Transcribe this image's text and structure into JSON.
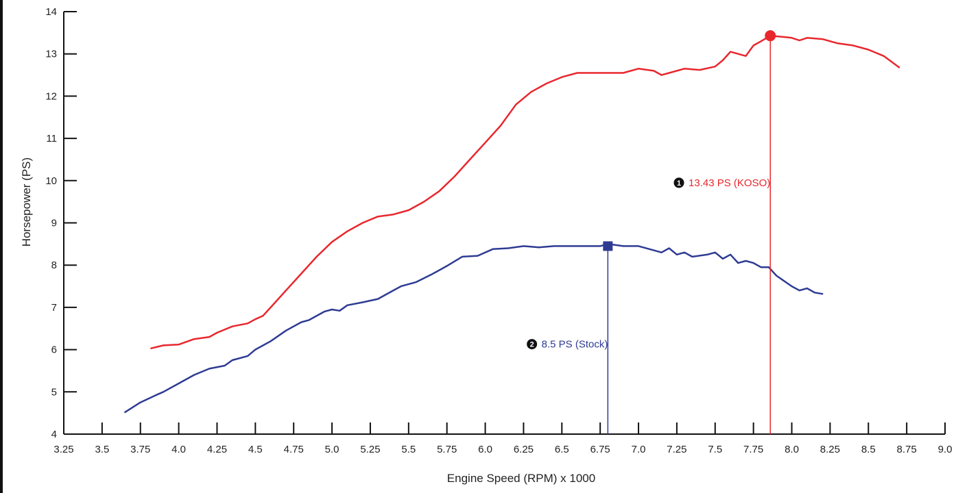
{
  "chart_data": {
    "type": "line",
    "title": "",
    "xlabel": "Engine Speed (RPM) x 1000",
    "ylabel": "Horsepower (PS)",
    "xlim": [
      3.25,
      9.0
    ],
    "ylim": [
      4,
      14
    ],
    "grid": false,
    "x_ticks": [
      3.25,
      3.5,
      3.75,
      4.0,
      4.25,
      4.5,
      4.75,
      5.0,
      5.25,
      5.5,
      5.75,
      6.0,
      6.25,
      6.5,
      6.75,
      7.0,
      7.25,
      7.5,
      7.75,
      8.0,
      8.25,
      8.5,
      8.75,
      9.0
    ],
    "x_tick_labels": [
      "3.25",
      "3.5",
      "3.75",
      "4.0",
      "4.25",
      "4.5",
      "4.75",
      "5.0",
      "5.25",
      "5.5",
      "5.75",
      "6.0",
      "6.25",
      "6.5",
      "6.75",
      "7.0",
      "7.25",
      "7.5",
      "7.75",
      "8.0",
      "8.25",
      "8.5",
      "8.75",
      "9.0"
    ],
    "y_ticks": [
      4,
      5,
      6,
      7,
      8,
      9,
      10,
      11,
      12,
      13,
      14
    ],
    "y_tick_labels": [
      "4",
      "5",
      "6",
      "7",
      "8",
      "9",
      "10",
      "11",
      "12",
      "13",
      "14"
    ],
    "series": [
      {
        "color": "#e8272d",
        "x": [
          3.82,
          3.9,
          4.0,
          4.1,
          4.2,
          4.25,
          4.35,
          4.45,
          4.5,
          4.55,
          4.6,
          4.7,
          4.8,
          4.9,
          5.0,
          5.1,
          5.2,
          5.3,
          5.4,
          5.5,
          5.6,
          5.7,
          5.8,
          5.9,
          6.0,
          6.1,
          6.2,
          6.3,
          6.4,
          6.5,
          6.6,
          6.7,
          6.8,
          6.9,
          7.0,
          7.1,
          7.15,
          7.2,
          7.3,
          7.4,
          7.5,
          7.55,
          7.6,
          7.7,
          7.75,
          7.8,
          7.86,
          7.95,
          8.0,
          8.05,
          8.1,
          8.2,
          8.3,
          8.4,
          8.5,
          8.6,
          8.7
        ],
        "y": [
          6.03,
          6.1,
          6.12,
          6.25,
          6.3,
          6.4,
          6.55,
          6.62,
          6.72,
          6.8,
          7.0,
          7.4,
          7.8,
          8.2,
          8.55,
          8.8,
          9.0,
          9.15,
          9.2,
          9.3,
          9.5,
          9.75,
          10.1,
          10.5,
          10.9,
          11.3,
          11.8,
          12.1,
          12.3,
          12.45,
          12.55,
          12.55,
          12.55,
          12.55,
          12.65,
          12.6,
          12.5,
          12.55,
          12.65,
          12.62,
          12.7,
          12.85,
          13.05,
          12.95,
          13.2,
          13.3,
          13.43,
          13.4,
          13.38,
          13.32,
          13.38,
          13.35,
          13.25,
          13.2,
          13.1,
          12.95,
          12.68
        ]
      },
      {
        "color": "#2e3b93",
        "x": [
          3.65,
          3.75,
          3.85,
          3.9,
          4.0,
          4.1,
          4.2,
          4.3,
          4.35,
          4.45,
          4.5,
          4.6,
          4.7,
          4.8,
          4.85,
          4.95,
          5.0,
          5.05,
          5.1,
          5.2,
          5.3,
          5.35,
          5.45,
          5.55,
          5.65,
          5.75,
          5.85,
          5.95,
          6.05,
          6.15,
          6.25,
          6.35,
          6.45,
          6.55,
          6.65,
          6.75,
          6.8,
          6.9,
          7.0,
          7.1,
          7.15,
          7.2,
          7.25,
          7.3,
          7.35,
          7.45,
          7.5,
          7.55,
          7.6,
          7.65,
          7.7,
          7.75,
          7.8,
          7.85,
          7.9,
          8.0,
          8.05,
          8.1,
          8.15,
          8.2
        ],
        "y": [
          4.52,
          4.75,
          4.92,
          5.0,
          5.2,
          5.4,
          5.55,
          5.62,
          5.75,
          5.85,
          6.0,
          6.2,
          6.45,
          6.65,
          6.7,
          6.9,
          6.95,
          6.92,
          7.05,
          7.12,
          7.2,
          7.3,
          7.5,
          7.6,
          7.78,
          7.98,
          8.2,
          8.22,
          8.38,
          8.4,
          8.45,
          8.42,
          8.45,
          8.45,
          8.45,
          8.45,
          8.5,
          8.45,
          8.45,
          8.35,
          8.3,
          8.4,
          8.25,
          8.3,
          8.2,
          8.25,
          8.3,
          8.15,
          8.25,
          8.05,
          8.1,
          8.05,
          7.95,
          7.95,
          7.75,
          7.5,
          7.4,
          7.45,
          7.35,
          7.32
        ]
      }
    ],
    "annotations": [
      {
        "badge": "1",
        "text": "13.43 PS (KOSO)",
        "x": 7.86,
        "y": 13.43,
        "label_y": 9.95,
        "color": "#e8272d",
        "marker": "circle"
      },
      {
        "badge": "2",
        "text": "8.5 PS (Stock)",
        "x": 6.8,
        "y": 8.45,
        "label_y": 6.13,
        "color": "#2e3b93",
        "marker": "square"
      }
    ]
  }
}
